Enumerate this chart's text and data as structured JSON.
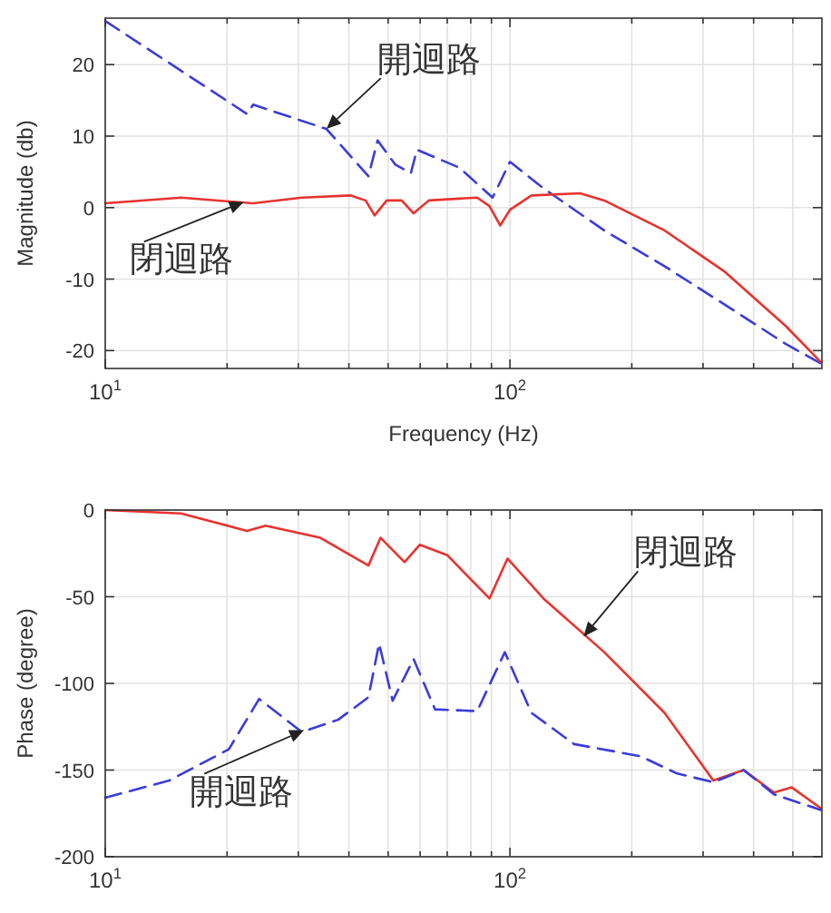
{
  "chart_data": [
    {
      "type": "line",
      "ylabel": "Magnitude (db)",
      "xlabel": "Frequency (Hz)",
      "log": "x",
      "grid": true,
      "xlim": [
        10,
        590
      ],
      "ylim": [
        -22.5,
        26.5
      ],
      "xticks": [
        {
          "value": 10,
          "label": "10$^{1}$"
        },
        {
          "value": 20,
          "label": null
        },
        {
          "value": 30,
          "label": null
        },
        {
          "value": 40,
          "label": null
        },
        {
          "value": 50,
          "label": null
        },
        {
          "value": 60,
          "label": null
        },
        {
          "value": 70,
          "label": null
        },
        {
          "value": 80,
          "label": null
        },
        {
          "value": 90,
          "label": null
        },
        {
          "value": 100,
          "label": "10$^{2}$"
        },
        {
          "value": 200,
          "label": null
        },
        {
          "value": 300,
          "label": null
        },
        {
          "value": 400,
          "label": null
        },
        {
          "value": 500,
          "label": null
        }
      ],
      "yticks": [
        -20,
        -10,
        0,
        10,
        20
      ],
      "series": [
        {
          "color": "#3b3bdc",
          "line_style": "dashed",
          "x": [
            10,
            22.4,
            23.2,
            35.2,
            44.7,
            47.1,
            52.1,
            56.9,
            58.9,
            74.9,
            90.6,
            100,
            121,
            171,
            241,
            340,
            481,
            586
          ],
          "values": [
            26.1,
            13.1,
            14.4,
            11.0,
            4.4,
            9.4,
            6.0,
            4.8,
            8.1,
            5.6,
            1.4,
            6.4,
            2.7,
            -3.2,
            -8.2,
            -13.6,
            -19.1,
            -21.8
          ]
        },
        {
          "color": "#e8332f",
          "line_style": "solid",
          "x": [
            10,
            15.4,
            23.2,
            30.6,
            40.3,
            44,
            46.3,
            49.6,
            54,
            57.8,
            63,
            83,
            89,
            94.6,
            100,
            113,
            149,
            171,
            241,
            340,
            481,
            586
          ],
          "values": [
            0.6,
            1.4,
            0.6,
            1.4,
            1.7,
            1.0,
            -1.1,
            1.0,
            1.0,
            -0.8,
            1.0,
            1.4,
            0.2,
            -2.5,
            -0.3,
            1.7,
            2.0,
            1.0,
            -3.2,
            -9.0,
            -16.6,
            -21.6
          ]
        }
      ],
      "annotations": [
        {
          "text": "開迴路",
          "x": 35.2,
          "y": 11.0
        },
        {
          "text": "閉迴路",
          "x": 22,
          "y": 0.8
        }
      ]
    },
    {
      "type": "line",
      "ylabel": "Phase (degree)",
      "log": "x",
      "grid": true,
      "xlim": [
        10,
        590
      ],
      "ylim": [
        -200,
        0
      ],
      "xticks": [
        {
          "value": 10,
          "label": "10$^{1}$"
        },
        {
          "value": 20,
          "label": null
        },
        {
          "value": 30,
          "label": null
        },
        {
          "value": 40,
          "label": null
        },
        {
          "value": 50,
          "label": null
        },
        {
          "value": 60,
          "label": null
        },
        {
          "value": 70,
          "label": null
        },
        {
          "value": 80,
          "label": null
        },
        {
          "value": 90,
          "label": null
        },
        {
          "value": 100,
          "label": "10$^{2}$"
        },
        {
          "value": 200,
          "label": null
        },
        {
          "value": 300,
          "label": null
        },
        {
          "value": 400,
          "label": null
        },
        {
          "value": 500,
          "label": null
        }
      ],
      "yticks": [
        -200,
        -150,
        -100,
        -50,
        0
      ],
      "series": [
        {
          "color": "#e8332f",
          "line_style": "solid",
          "x": [
            10,
            15.4,
            22.4,
            24.9,
            34.0,
            44.7,
            47.9,
            54.9,
            59.9,
            70,
            89,
            98.6,
            121,
            171,
            241,
            318,
            378,
            449,
            497,
            586
          ],
          "values": [
            0,
            -2,
            -12,
            -9,
            -16,
            -32,
            -16,
            -30,
            -20,
            -26,
            -51,
            -28,
            -51,
            -82,
            -117,
            -156,
            -150,
            -163,
            -160,
            -172
          ]
        },
        {
          "color": "#3b3bdc",
          "line_style": "dashed",
          "x": [
            10,
            14.4,
            20.2,
            24.0,
            30.6,
            37.6,
            44.7,
            47.5,
            51.3,
            57.8,
            65.3,
            83,
            97.1,
            113,
            144,
            210,
            259,
            318,
            378,
            449,
            586
          ],
          "values": [
            -166,
            -156,
            -138,
            -109,
            -128,
            -121,
            -108,
            -77,
            -110,
            -86,
            -115,
            -116,
            -82,
            -117,
            -135,
            -142,
            -152,
            -157,
            -150,
            -164,
            -173
          ]
        }
      ],
      "annotations": [
        {
          "text": "閉迴路",
          "x": 152,
          "y": -73
        },
        {
          "text": "開迴路",
          "x": 31,
          "y": -127
        }
      ]
    }
  ]
}
